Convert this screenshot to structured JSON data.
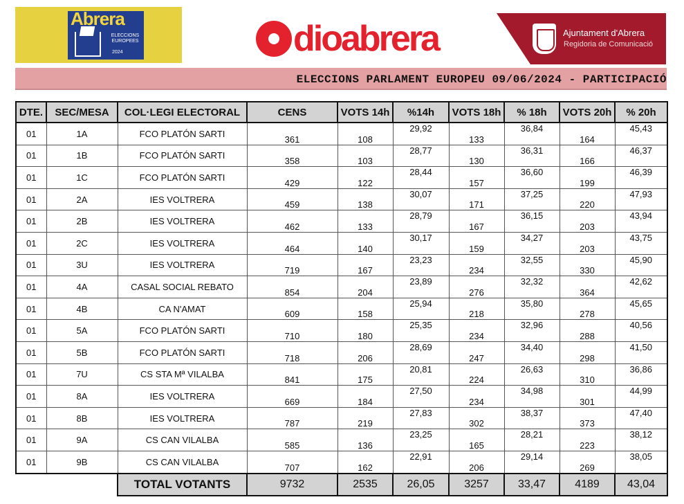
{
  "header": {
    "abrera_logo": {
      "title": "Abrera",
      "subtitle": "ELECCIONS EUROPEES",
      "year": "2024"
    },
    "radio_logo": {
      "text": "dioabrera"
    },
    "ajuntament": {
      "name": "Ajuntament d'Abrera",
      "department": "Regidoria de Comunicació"
    },
    "colors": {
      "yellow": "#e6d140",
      "red": "#e3222d",
      "maroon": "#a31a2c",
      "pink": "#e3a1a4"
    }
  },
  "title": "ELECCIONS PARLAMENT EUROPEU 09/06/2024 - PARTICIPACIÓ",
  "table": {
    "headers": [
      "DTE.",
      "SEC/MESA",
      "COL·LEGI ELECTORAL",
      "CENS",
      "VOTS 14h",
      "%14h",
      "VOTS 18h",
      "% 18h",
      "VOTS 20h",
      "% 20h"
    ],
    "rows": [
      [
        "01",
        "1A",
        "FCO PLATÓN SARTI",
        "361",
        "108",
        "29,92",
        "133",
        "36,84",
        "164",
        "45,43"
      ],
      [
        "01",
        "1B",
        "FCO PLATÓN SARTI",
        "358",
        "103",
        "28,77",
        "130",
        "36,31",
        "166",
        "46,37"
      ],
      [
        "01",
        "1C",
        "FCO PLATÓN SARTI",
        "429",
        "122",
        "28,44",
        "157",
        "36,60",
        "199",
        "46,39"
      ],
      [
        "01",
        "2A",
        "IES VOLTRERA",
        "459",
        "138",
        "30,07",
        "171",
        "37,25",
        "220",
        "47,93"
      ],
      [
        "01",
        "2B",
        "IES VOLTRERA",
        "462",
        "133",
        "28,79",
        "167",
        "36,15",
        "203",
        "43,94"
      ],
      [
        "01",
        "2C",
        "IES VOLTRERA",
        "464",
        "140",
        "30,17",
        "159",
        "34,27",
        "203",
        "43,75"
      ],
      [
        "01",
        "3U",
        "IES VOLTRERA",
        "719",
        "167",
        "23,23",
        "234",
        "32,55",
        "330",
        "45,90"
      ],
      [
        "01",
        "4A",
        "CASAL SOCIAL REBATO",
        "854",
        "204",
        "23,89",
        "276",
        "32,32",
        "364",
        "42,62"
      ],
      [
        "01",
        "4B",
        "CA N'AMAT",
        "609",
        "158",
        "25,94",
        "218",
        "35,80",
        "278",
        "45,65"
      ],
      [
        "01",
        "5A",
        "FCO PLATÓN SARTI",
        "710",
        "180",
        "25,35",
        "234",
        "32,96",
        "288",
        "40,56"
      ],
      [
        "01",
        "5B",
        "FCO PLATÓN SARTI",
        "718",
        "206",
        "28,69",
        "247",
        "34,40",
        "298",
        "41,50"
      ],
      [
        "01",
        "7U",
        "CS STA Mª VILALBA",
        "841",
        "175",
        "20,81",
        "224",
        "26,63",
        "310",
        "36,86"
      ],
      [
        "01",
        "8A",
        "IES VOLTRERA",
        "669",
        "184",
        "27,50",
        "234",
        "34,98",
        "301",
        "44,99"
      ],
      [
        "01",
        "8B",
        "IES VOLTRERA",
        "787",
        "219",
        "27,83",
        "302",
        "38,37",
        "373",
        "47,40"
      ],
      [
        "01",
        "9A",
        "CS CAN VILALBA",
        "585",
        "136",
        "23,25",
        "165",
        "28,21",
        "223",
        "38,12"
      ],
      [
        "01",
        "9B",
        "CS CAN VILALBA",
        "707",
        "162",
        "22,91",
        "206",
        "29,14",
        "269",
        "38,05"
      ]
    ],
    "total": {
      "label": "TOTAL VOTANTS",
      "cens": "9732",
      "v14": "2535",
      "p14": "26,05",
      "v18": "3257",
      "p18": "33,47",
      "v20": "4189",
      "p20": "43,04"
    }
  }
}
